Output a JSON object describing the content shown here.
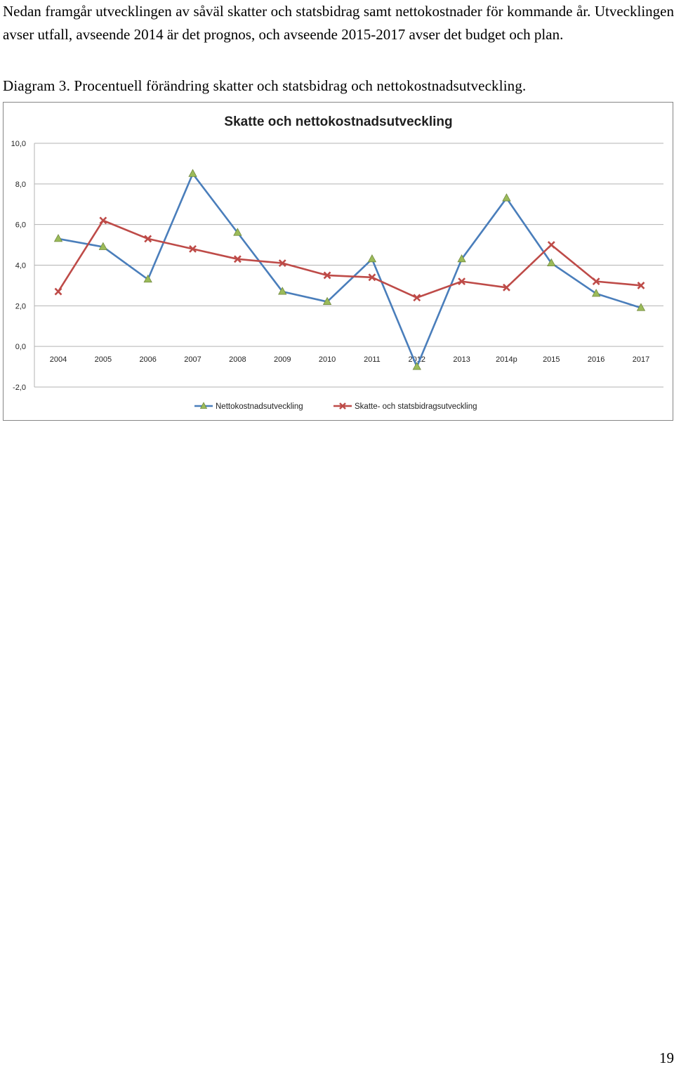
{
  "document": {
    "paragraph": "Nedan framgår utvecklingen av såväl skatter och statsbidrag samt nettokostnader för kommande år. Utvecklingen avser utfall, avseende 2014 är det prognos, och avseende 2015-2017 avser det budget och plan.",
    "caption": "Diagram 3. Procentuell förändring skatter och statsbidrag och nettokostnadsutveckling.",
    "page_number": "19"
  },
  "chart_data": {
    "type": "line",
    "title": "Skatte och nettokostnadsutveckling",
    "xlabel": "",
    "ylabel": "",
    "categories": [
      "2004",
      "2005",
      "2006",
      "2007",
      "2008",
      "2009",
      "2010",
      "2011",
      "2012",
      "2013",
      "2014p",
      "2015",
      "2016",
      "2017"
    ],
    "ylim": [
      -2,
      10
    ],
    "yticks": [
      "-2,0",
      "0,0",
      "2,0",
      "4,0",
      "6,0",
      "8,0",
      "10,0"
    ],
    "grid": true,
    "legend_position": "bottom",
    "series": [
      {
        "name": "Nettokostnadsutveckling",
        "color": "#4a7ebb",
        "marker": "triangle",
        "marker_color": "#9bbb59",
        "values": [
          5.3,
          4.9,
          3.3,
          8.5,
          5.6,
          2.7,
          2.2,
          4.3,
          -1.0,
          4.3,
          7.3,
          4.1,
          2.6,
          1.9
        ]
      },
      {
        "name": "Skatte- och statsbidragsutveckling",
        "color": "#be4b48",
        "marker": "x",
        "marker_color": "#be4b48",
        "values": [
          2.7,
          6.2,
          5.3,
          4.8,
          4.3,
          4.1,
          3.5,
          3.4,
          2.4,
          3.2,
          2.9,
          5.0,
          3.2,
          3.0
        ]
      }
    ]
  }
}
